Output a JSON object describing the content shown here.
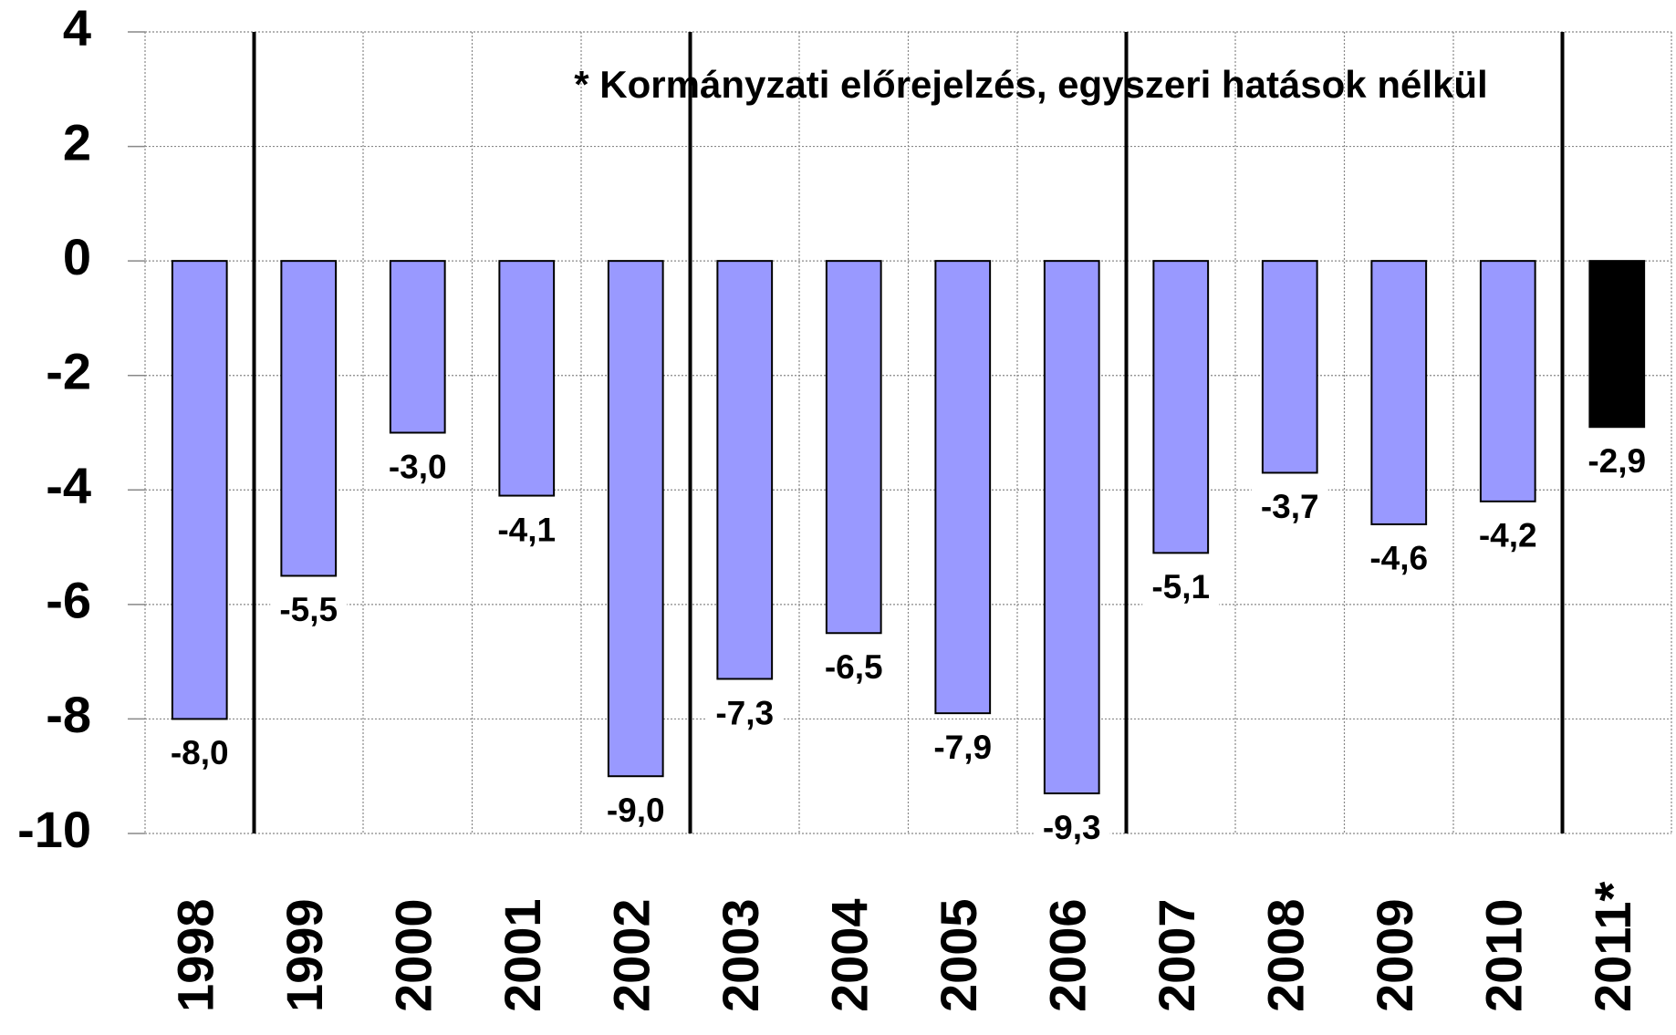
{
  "chart_data": {
    "type": "bar",
    "annotation": "* Kormányzati előrejelzés, egyszeri hatások nélkül",
    "categories": [
      "1998",
      "1999",
      "2000",
      "2001",
      "2002",
      "2003",
      "2004",
      "2005",
      "2006",
      "2007",
      "2008",
      "2009",
      "2010",
      "2011*"
    ],
    "values": [
      -8.0,
      -5.5,
      -3.0,
      -4.1,
      -9.0,
      -7.3,
      -6.5,
      -7.9,
      -9.3,
      -5.1,
      -3.7,
      -4.6,
      -4.2,
      -2.9
    ],
    "value_labels": [
      "-8,0",
      "-5,5",
      "-3,0",
      "-4,1",
      "-9,0",
      "-7,3",
      "-6,5",
      "-7,9",
      "-9,3",
      "-5,1",
      "-3,7",
      "-4,6",
      "-4,2",
      "-2,9"
    ],
    "colors": [
      "#9999ff",
      "#9999ff",
      "#9999ff",
      "#9999ff",
      "#9999ff",
      "#9999ff",
      "#9999ff",
      "#9999ff",
      "#9999ff",
      "#9999ff",
      "#9999ff",
      "#9999ff",
      "#9999ff",
      "#000000"
    ],
    "ylim": [
      -10,
      4
    ],
    "yticks": [
      4,
      2,
      0,
      -2,
      -4,
      -6,
      -8,
      -10
    ],
    "grid": true
  }
}
